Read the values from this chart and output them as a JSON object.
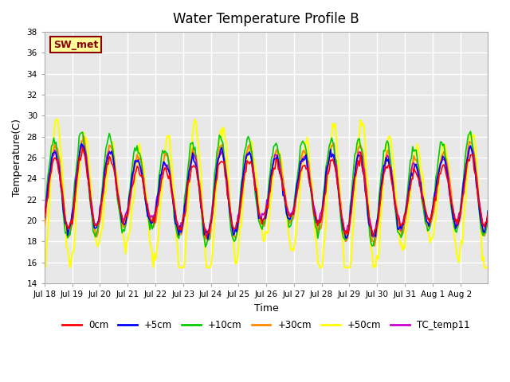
{
  "title": "Water Temperature Profile B",
  "xlabel": "Time",
  "ylabel": "Temperature(C)",
  "ylim": [
    14,
    38
  ],
  "yticks": [
    14,
    16,
    18,
    20,
    22,
    24,
    26,
    28,
    30,
    32,
    34,
    36,
    38
  ],
  "bg_color": "#e8e8e8",
  "grid_color": "white",
  "annotation_text": "SW_met",
  "annotation_fg": "#8b0000",
  "annotation_bg": "#ffff99",
  "annotation_border": "#8b0000",
  "series_colors": {
    "0cm": "#ff0000",
    "+5cm": "#0000ff",
    "+10cm": "#00cc00",
    "+30cm": "#ff8800",
    "+50cm": "#ffff00",
    "TC_temp11": "#cc00cc"
  },
  "series_lw": {
    "0cm": 1.2,
    "+5cm": 1.2,
    "+10cm": 1.2,
    "+30cm": 1.5,
    "+50cm": 1.5,
    "TC_temp11": 1.2
  },
  "xtick_labels": [
    "Jul 18",
    "Jul 19",
    "Jul 20",
    "Jul 21",
    "Jul 22",
    "Jul 23",
    "Jul 24",
    "Jul 25",
    "Jul 26",
    "Jul 27",
    "Jul 28",
    "Jul 29",
    "Jul 30",
    "Jul 31",
    "Aug 1",
    "Aug 2"
  ],
  "n_days": 16,
  "n_points": 384
}
